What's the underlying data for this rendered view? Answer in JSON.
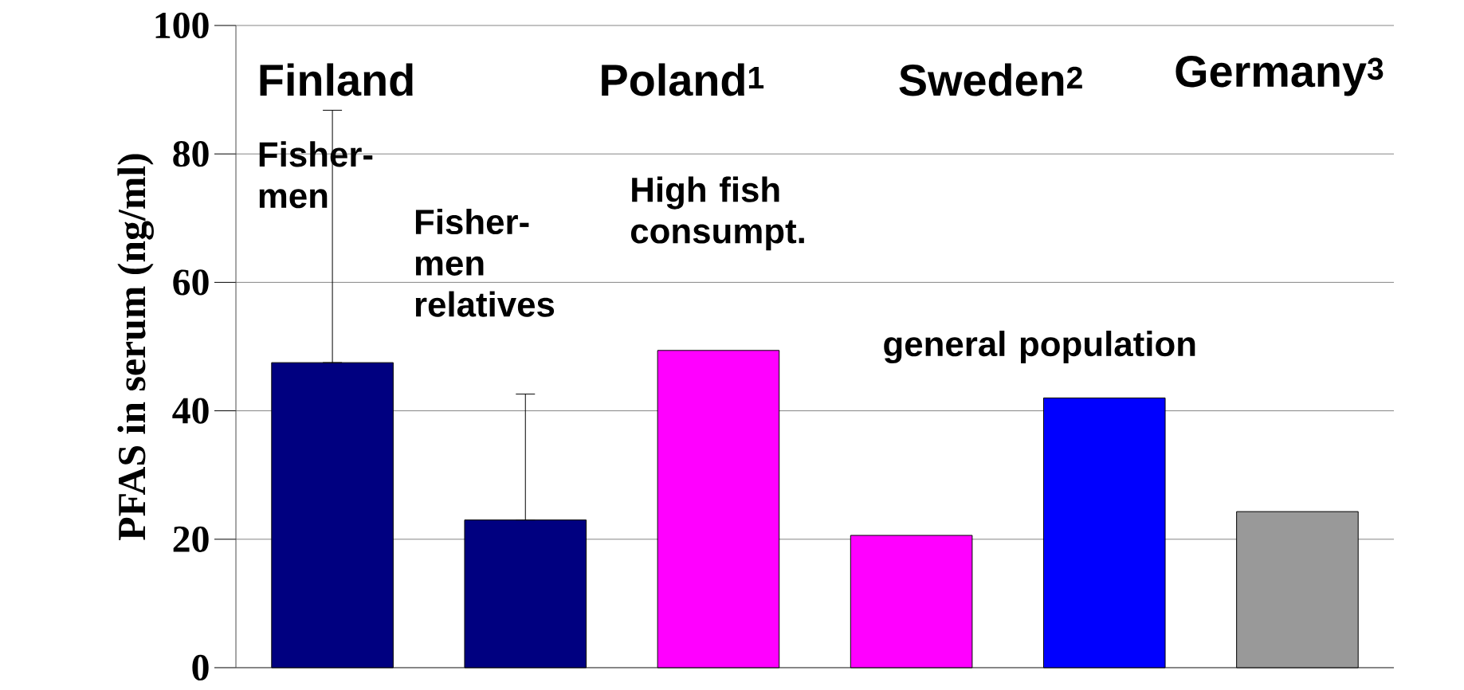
{
  "chart_data": {
    "type": "bar",
    "ylabel": "PFAS in serum (ng/ml)",
    "categories": [
      null,
      null,
      null,
      null,
      null,
      null
    ],
    "values": [
      47.5,
      23.0,
      49.4,
      20.6,
      42.0,
      24.3
    ],
    "colors": [
      "#000080",
      "#000080",
      "#ff00ff",
      "#ff00ff",
      "#0000ff",
      "#999999"
    ],
    "errors": [
      [
        47.5,
        86.8
      ],
      [
        23.0,
        42.6
      ],
      null,
      null,
      null,
      null
    ],
    "ylim": [
      0,
      100
    ],
    "yticks": [
      0,
      20,
      40,
      60,
      80,
      100
    ],
    "grid": "y",
    "annotations": [
      "Finland",
      "Poland$^{1}$",
      "Sweden$^{2}$",
      "Germany$^{3}$",
      "Fisher-\nmen",
      "Fisher-\nmen\nrelatives",
      "High fish\nconsumpt.",
      "general population"
    ]
  }
}
